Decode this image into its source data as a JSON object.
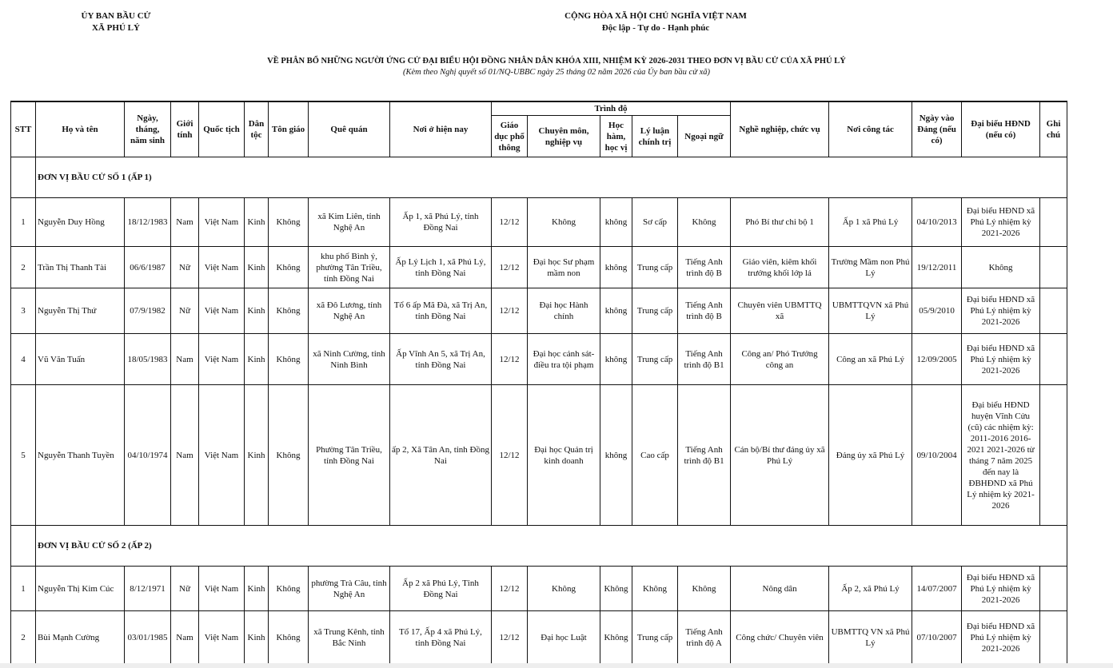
{
  "header": {
    "left_line1": "ỦY BAN BẦU CỬ",
    "left_line2": "XÃ PHÚ LÝ",
    "right_line1": "CỘNG HÒA XÃ HỘI CHỦ NGHĨA VIỆT NAM",
    "right_line2": "Độc lập - Tự do - Hạnh phúc"
  },
  "title": "VỀ PHÂN BỔ NHỮNG NGƯỜI ỨNG CỬ ĐẠI BIỂU HỘI ĐỒNG NHÂN DÂN KHÓA XIII, NHIỆM KỲ 2026-2031 THEO ĐƠN VỊ BẦU CỬ CỦA XÃ PHÚ LÝ",
  "subtitle": "(Kèm theo Nghị quyết số 01/NQ-UBBC ngày 25 tháng 02 năm 2026 của Ủy ban bầu cử xã)",
  "columns": {
    "stt": "STT",
    "name": "Họ và tên",
    "dob": "Ngày, tháng, năm sinh",
    "gender": "Giới tính",
    "nationality": "Quốc tịch",
    "ethnicity": "Dân tộc",
    "religion": "Tôn giáo",
    "hometown": "Quê quán",
    "residence": "Nơi ở hiện nay",
    "education_group": "Trình độ",
    "general_edu": "Giáo dục phổ thông",
    "specialty": "Chuyên môn, nghiệp vụ",
    "degree": "Học hàm, học vị",
    "political": "Lý luận chính trị",
    "language": "Ngoại ngữ",
    "occupation": "Nghề nghiệp, chức vụ",
    "workplace": "Nơi công tác",
    "party_date": "Ngày vào Đảng (nếu có)",
    "delegate": "Đại biểu HĐND (nếu có)",
    "note": "Ghi chú"
  },
  "units": [
    {
      "label": "ĐƠN VỊ BẦU CỬ SỐ 1 (ẤP 1)",
      "rows": [
        [
          "1",
          "Nguyễn Duy Hồng",
          "18/12/1983",
          "Nam",
          "Việt Nam",
          "Kinh",
          "Không",
          "xã Kim Liên, tỉnh Nghệ An",
          "Ấp 1, xã Phú Lý, tỉnh Đồng Nai",
          "12/12",
          "Không",
          "không",
          "Sơ cấp",
          "Không",
          "Phó Bí thư chi bộ 1",
          "Ấp 1 xã Phú Lý",
          "04/10/2013",
          "Đại biểu HĐND xã Phú Lý nhiệm kỳ 2021-2026",
          ""
        ],
        [
          "2",
          "Trần Thị Thanh Tài",
          "06/6/1987",
          "Nữ",
          "Việt Nam",
          "Kinh",
          "Không",
          "khu phố Bình ý, phường Tân Triều, tỉnh Đồng Nai",
          "Ấp Lý Lịch 1, xã Phú Lý, tỉnh Đồng Nai",
          "12/12",
          "Đại học Sư phạm mầm non",
          "không",
          "Trung cấp",
          "Tiếng Anh trình độ B",
          "Giáo viên, kiêm khối trưởng khối lớp lá",
          "Trường Mầm non Phú Lý",
          "19/12/2011",
          "Không",
          ""
        ],
        [
          "3",
          "Nguyễn Thị Thứ",
          "07/9/1982",
          "Nữ",
          "Việt Nam",
          "Kinh",
          "Không",
          "xã Đô Lương, tỉnh Nghệ An",
          "Tổ 6 ấp Mã Đà, xã Trị An, tỉnh Đồng Nai",
          "12/12",
          "Đại học Hành chính",
          "không",
          "Trung cấp",
          "Tiếng Anh trình độ B",
          "Chuyên viên UBMTTQ xã",
          "UBMTTQVN xã Phú Lý",
          "05/9/2010",
          "Đại biểu HĐND xã Phú Lý nhiệm kỳ 2021-2026",
          ""
        ],
        [
          "4",
          "Vũ Văn Tuấn",
          "18/05/1983",
          "Nam",
          "Việt Nam",
          "Kinh",
          "Không",
          "xã Ninh Cường, tỉnh Ninh Bình",
          "Ấp Vĩnh An 5, xã Trị An, tỉnh Đồng Nai",
          "12/12",
          "Đại học cảnh sát-điều tra tội phạm",
          "không",
          "Trung cấp",
          "Tiếng Anh trình độ B1",
          "Công an/ Phó Trưởng công an",
          "Công an xã Phú Lý",
          "12/09/2005",
          "Đại biểu HĐND xã Phú Lý nhiệm kỳ 2021-2026",
          ""
        ],
        [
          "5",
          "Nguyễn Thanh Tuyền",
          "04/10/1974",
          "Nam",
          "Việt Nam",
          "Kinh",
          "Không",
          "Phường Tân Triều, tỉnh Đồng Nai",
          "ấp 2, Xã Tân An, tỉnh Đồng Nai",
          "12/12",
          "Đại học Quản trị kinh doanh",
          "không",
          "Cao cấp",
          "Tiếng Anh trình độ B1",
          "Cán bộ/Bí thư đảng ủy xã Phú Lý",
          "Đảng ủy xã Phú Lý",
          "09/10/2004",
          "Đại biểu HĐND huyện Vĩnh Cửu (cũ) các nhiệm kỳ: 2011-2016 2016-2021 2021-2026 từ tháng 7 năm 2025 đến nay là ĐBHĐND xã Phú Lý nhiệm kỳ 2021-2026",
          ""
        ]
      ]
    },
    {
      "label": "ĐƠN VỊ BẦU CỬ SỐ 2 (ẤP 2)",
      "rows": [
        [
          "1",
          "Nguyễn Thị Kim Cúc",
          "8/12/1971",
          "Nữ",
          "Việt Nam",
          "Kinh",
          "Không",
          "phường Trà Câu, tỉnh Nghệ An",
          "Ấp 2 xã Phú Lý, Tỉnh Đồng Nai",
          "12/12",
          "Không",
          "Không",
          "Không",
          "Không",
          "Nông dân",
          "Ấp 2, xã Phú Lý",
          "14/07/2007",
          "Đại biểu HĐND xã Phú Lý nhiệm kỳ 2021-2026",
          ""
        ],
        [
          "2",
          "Bùi Mạnh Cường",
          "03/01/1985",
          "Nam",
          "Việt Nam",
          "Kinh",
          "Không",
          "xã Trung Kênh, tỉnh Bắc Ninh",
          "Tổ 17, Ấp 4 xã Phú Lý, tỉnh Đồng Nai",
          "12/12",
          "Đại học Luật",
          "Không",
          "Trung cấp",
          "Tiếng Anh trình độ A",
          "Công chức/ Chuyên viên",
          "UBMTTQ VN xã Phú Lý",
          "07/10/2007",
          "Đại biểu HĐND xã Phú Lý nhiệm kỳ 2021-2026",
          ""
        ]
      ]
    }
  ]
}
